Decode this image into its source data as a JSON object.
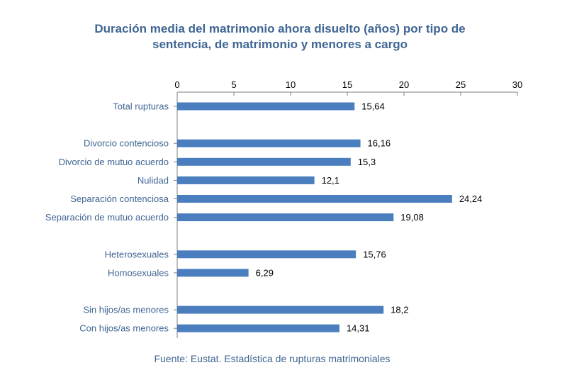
{
  "chart_data": {
    "type": "bar",
    "orientation": "horizontal",
    "title_lines": [
      "Duración media del matrimonio ahora disuelto (años) por tipo de",
      "sentencia, de matrimonio y menores a cargo"
    ],
    "xlim": [
      0,
      30
    ],
    "x_ticks": [
      0,
      5,
      10,
      15,
      20,
      25,
      30
    ],
    "x_axis_position": "top",
    "grid": false,
    "bar_color": "#4a7ebf",
    "groups": [
      [
        {
          "label": "Total rupturas",
          "value": 15.64,
          "value_label": "15,64"
        }
      ],
      [
        {
          "label": "Divorcio contencioso",
          "value": 16.16,
          "value_label": "16,16"
        },
        {
          "label": "Divorcio de mutuo acuerdo",
          "value": 15.3,
          "value_label": "15,3"
        },
        {
          "label": "Nulidad",
          "value": 12.1,
          "value_label": "12,1"
        },
        {
          "label": "Separación contenciosa",
          "value": 24.24,
          "value_label": "24,24"
        },
        {
          "label": "Separación de mutuo acuerdo",
          "value": 19.08,
          "value_label": "19,08"
        }
      ],
      [
        {
          "label": "Heterosexuales",
          "value": 15.76,
          "value_label": "15,76"
        },
        {
          "label": "Homosexuales",
          "value": 6.29,
          "value_label": "6,29"
        }
      ],
      [
        {
          "label": "Sin hijos/as menores",
          "value": 18.2,
          "value_label": "18,2"
        },
        {
          "label": "Con hijos/as menores",
          "value": 14.31,
          "value_label": "14,31"
        }
      ]
    ]
  },
  "source": "Fuente: Eustat. Estadística de rupturas matrimoniales",
  "colors": {
    "title": "#3f6593",
    "category_label": "#3f6593",
    "bar": "#4a7ebf",
    "axis": "#7f7f7f",
    "text": "#000000"
  }
}
